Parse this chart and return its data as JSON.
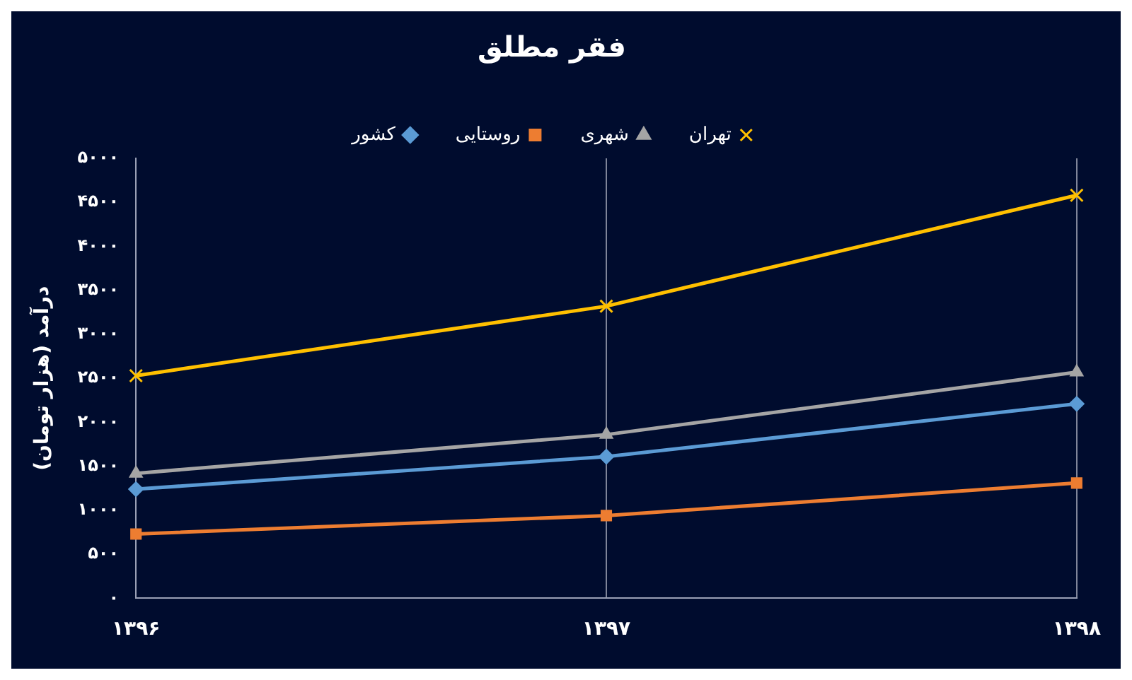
{
  "chart_data": {
    "type": "line",
    "title": "فقر مطلق",
    "ylabel": "درآمد (هزار تومان)",
    "categories": [
      "۱۳۹۶",
      "۱۳۹۷",
      "۱۳۹۸"
    ],
    "series": [
      {
        "name": "کشور",
        "color": "#5b9bd5",
        "marker": "diamond",
        "values": [
          1240,
          1610,
          2210
        ]
      },
      {
        "name": "روستایی",
        "color": "#ed7d31",
        "marker": "square",
        "values": [
          730,
          940,
          1310
        ]
      },
      {
        "name": "شهری",
        "color": "#a5a5a5",
        "marker": "triangle",
        "values": [
          1420,
          1860,
          2570
        ]
      },
      {
        "name": "تهران",
        "color": "#ffc000",
        "marker": "cross",
        "values": [
          2530,
          3320,
          4580
        ]
      }
    ],
    "ylim": [
      0,
      5000
    ],
    "yticks": [
      {
        "value": 0,
        "label": "۰"
      },
      {
        "value": 500,
        "label": "۵۰۰"
      },
      {
        "value": 1000,
        "label": "۱۰۰۰"
      },
      {
        "value": 1500,
        "label": "۱۵۰۰"
      },
      {
        "value": 2000,
        "label": "۲۰۰۰"
      },
      {
        "value": 2500,
        "label": "۲۵۰۰"
      },
      {
        "value": 3000,
        "label": "۳۰۰۰"
      },
      {
        "value": 3500,
        "label": "۳۵۰۰"
      },
      {
        "value": 4000,
        "label": "۴۰۰۰"
      },
      {
        "value": 4500,
        "label": "۴۵۰۰"
      },
      {
        "value": 5000,
        "label": "۵۰۰۰"
      }
    ],
    "grid": "x",
    "legend": "top",
    "line_style": "solid"
  }
}
